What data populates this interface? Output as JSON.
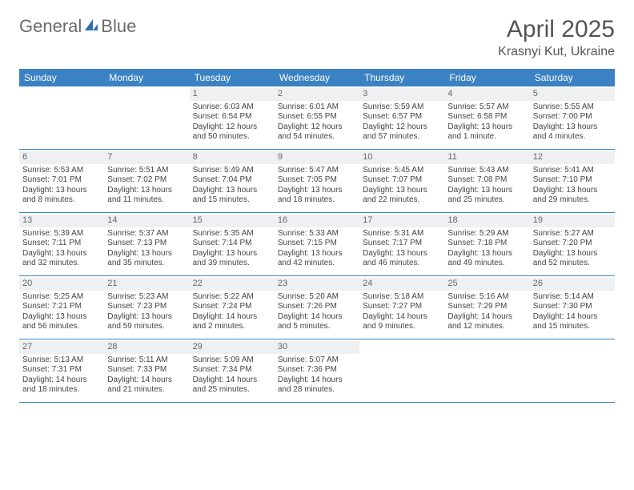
{
  "brand": {
    "name_a": "General",
    "name_b": "Blue"
  },
  "title": "April 2025",
  "location": "Krasnyi Kut, Ukraine",
  "colors": {
    "header_bg": "#3b82c4",
    "header_text": "#ffffff",
    "day_num_bg": "#eef0f2",
    "text": "#444444",
    "rule": "#3b82c4"
  },
  "dows": [
    "Sunday",
    "Monday",
    "Tuesday",
    "Wednesday",
    "Thursday",
    "Friday",
    "Saturday"
  ],
  "weeks": [
    [
      {
        "n": "",
        "sr": "",
        "ss": "",
        "dl": ""
      },
      {
        "n": "",
        "sr": "",
        "ss": "",
        "dl": ""
      },
      {
        "n": "1",
        "sr": "Sunrise: 6:03 AM",
        "ss": "Sunset: 6:54 PM",
        "dl": "Daylight: 12 hours and 50 minutes."
      },
      {
        "n": "2",
        "sr": "Sunrise: 6:01 AM",
        "ss": "Sunset: 6:55 PM",
        "dl": "Daylight: 12 hours and 54 minutes."
      },
      {
        "n": "3",
        "sr": "Sunrise: 5:59 AM",
        "ss": "Sunset: 6:57 PM",
        "dl": "Daylight: 12 hours and 57 minutes."
      },
      {
        "n": "4",
        "sr": "Sunrise: 5:57 AM",
        "ss": "Sunset: 6:58 PM",
        "dl": "Daylight: 13 hours and 1 minute."
      },
      {
        "n": "5",
        "sr": "Sunrise: 5:55 AM",
        "ss": "Sunset: 7:00 PM",
        "dl": "Daylight: 13 hours and 4 minutes."
      }
    ],
    [
      {
        "n": "6",
        "sr": "Sunrise: 5:53 AM",
        "ss": "Sunset: 7:01 PM",
        "dl": "Daylight: 13 hours and 8 minutes."
      },
      {
        "n": "7",
        "sr": "Sunrise: 5:51 AM",
        "ss": "Sunset: 7:02 PM",
        "dl": "Daylight: 13 hours and 11 minutes."
      },
      {
        "n": "8",
        "sr": "Sunrise: 5:49 AM",
        "ss": "Sunset: 7:04 PM",
        "dl": "Daylight: 13 hours and 15 minutes."
      },
      {
        "n": "9",
        "sr": "Sunrise: 5:47 AM",
        "ss": "Sunset: 7:05 PM",
        "dl": "Daylight: 13 hours and 18 minutes."
      },
      {
        "n": "10",
        "sr": "Sunrise: 5:45 AM",
        "ss": "Sunset: 7:07 PM",
        "dl": "Daylight: 13 hours and 22 minutes."
      },
      {
        "n": "11",
        "sr": "Sunrise: 5:43 AM",
        "ss": "Sunset: 7:08 PM",
        "dl": "Daylight: 13 hours and 25 minutes."
      },
      {
        "n": "12",
        "sr": "Sunrise: 5:41 AM",
        "ss": "Sunset: 7:10 PM",
        "dl": "Daylight: 13 hours and 29 minutes."
      }
    ],
    [
      {
        "n": "13",
        "sr": "Sunrise: 5:39 AM",
        "ss": "Sunset: 7:11 PM",
        "dl": "Daylight: 13 hours and 32 minutes."
      },
      {
        "n": "14",
        "sr": "Sunrise: 5:37 AM",
        "ss": "Sunset: 7:13 PM",
        "dl": "Daylight: 13 hours and 35 minutes."
      },
      {
        "n": "15",
        "sr": "Sunrise: 5:35 AM",
        "ss": "Sunset: 7:14 PM",
        "dl": "Daylight: 13 hours and 39 minutes."
      },
      {
        "n": "16",
        "sr": "Sunrise: 5:33 AM",
        "ss": "Sunset: 7:15 PM",
        "dl": "Daylight: 13 hours and 42 minutes."
      },
      {
        "n": "17",
        "sr": "Sunrise: 5:31 AM",
        "ss": "Sunset: 7:17 PM",
        "dl": "Daylight: 13 hours and 46 minutes."
      },
      {
        "n": "18",
        "sr": "Sunrise: 5:29 AM",
        "ss": "Sunset: 7:18 PM",
        "dl": "Daylight: 13 hours and 49 minutes."
      },
      {
        "n": "19",
        "sr": "Sunrise: 5:27 AM",
        "ss": "Sunset: 7:20 PM",
        "dl": "Daylight: 13 hours and 52 minutes."
      }
    ],
    [
      {
        "n": "20",
        "sr": "Sunrise: 5:25 AM",
        "ss": "Sunset: 7:21 PM",
        "dl": "Daylight: 13 hours and 56 minutes."
      },
      {
        "n": "21",
        "sr": "Sunrise: 5:23 AM",
        "ss": "Sunset: 7:23 PM",
        "dl": "Daylight: 13 hours and 59 minutes."
      },
      {
        "n": "22",
        "sr": "Sunrise: 5:22 AM",
        "ss": "Sunset: 7:24 PM",
        "dl": "Daylight: 14 hours and 2 minutes."
      },
      {
        "n": "23",
        "sr": "Sunrise: 5:20 AM",
        "ss": "Sunset: 7:26 PM",
        "dl": "Daylight: 14 hours and 5 minutes."
      },
      {
        "n": "24",
        "sr": "Sunrise: 5:18 AM",
        "ss": "Sunset: 7:27 PM",
        "dl": "Daylight: 14 hours and 9 minutes."
      },
      {
        "n": "25",
        "sr": "Sunrise: 5:16 AM",
        "ss": "Sunset: 7:29 PM",
        "dl": "Daylight: 14 hours and 12 minutes."
      },
      {
        "n": "26",
        "sr": "Sunrise: 5:14 AM",
        "ss": "Sunset: 7:30 PM",
        "dl": "Daylight: 14 hours and 15 minutes."
      }
    ],
    [
      {
        "n": "27",
        "sr": "Sunrise: 5:13 AM",
        "ss": "Sunset: 7:31 PM",
        "dl": "Daylight: 14 hours and 18 minutes."
      },
      {
        "n": "28",
        "sr": "Sunrise: 5:11 AM",
        "ss": "Sunset: 7:33 PM",
        "dl": "Daylight: 14 hours and 21 minutes."
      },
      {
        "n": "29",
        "sr": "Sunrise: 5:09 AM",
        "ss": "Sunset: 7:34 PM",
        "dl": "Daylight: 14 hours and 25 minutes."
      },
      {
        "n": "30",
        "sr": "Sunrise: 5:07 AM",
        "ss": "Sunset: 7:36 PM",
        "dl": "Daylight: 14 hours and 28 minutes."
      },
      {
        "n": "",
        "sr": "",
        "ss": "",
        "dl": ""
      },
      {
        "n": "",
        "sr": "",
        "ss": "",
        "dl": ""
      },
      {
        "n": "",
        "sr": "",
        "ss": "",
        "dl": ""
      }
    ]
  ]
}
